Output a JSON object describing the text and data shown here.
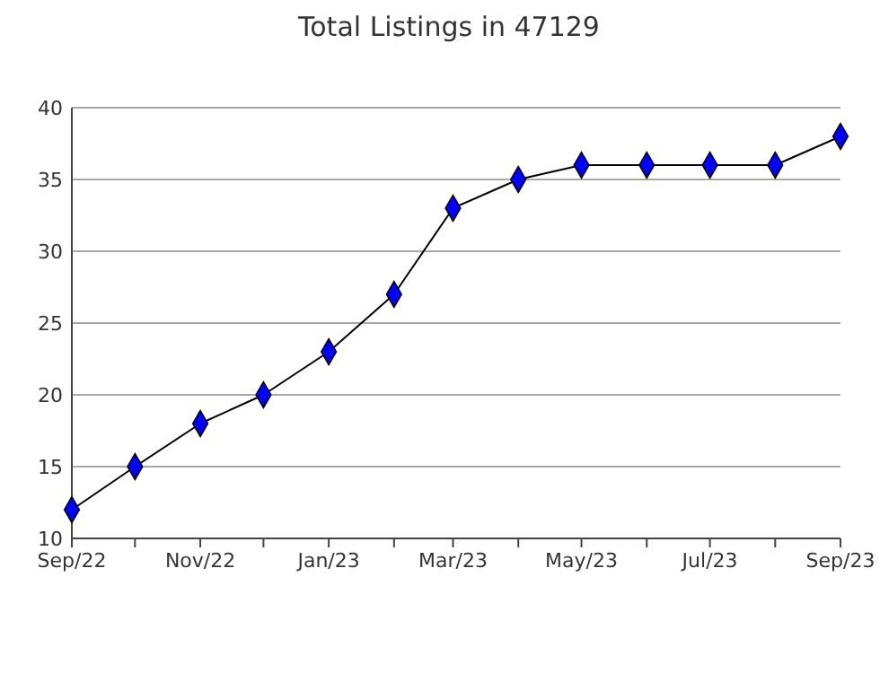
{
  "chart_data": {
    "type": "line",
    "title": "Total Listings in 47129",
    "x": [
      "2022-09",
      "2022-10",
      "2022-11",
      "2022-12",
      "2023-01",
      "2023-02",
      "2023-03",
      "2023-04",
      "2023-05",
      "2023-06",
      "2023-07",
      "2023-08",
      "2023-09"
    ],
    "series": [
      {
        "color": "#0000ff",
        "values": [
          12,
          15,
          18,
          20,
          23,
          27,
          33,
          35,
          36,
          36,
          36,
          36,
          38
        ]
      }
    ],
    "xlim": [
      "2022-09",
      "2023-09"
    ],
    "xticks": [
      {
        "value": "2022-09",
        "label": "Sep/22"
      },
      {
        "value": "2022-10",
        "label": null
      },
      {
        "value": "2022-11",
        "label": "Nov/22"
      },
      {
        "value": "2022-12",
        "label": null
      },
      {
        "value": "2023-01",
        "label": "Jan/23"
      },
      {
        "value": "2023-02",
        "label": null
      },
      {
        "value": "2023-03",
        "label": "Mar/23"
      },
      {
        "value": "2023-04",
        "label": null
      },
      {
        "value": "2023-05",
        "label": "May/23"
      },
      {
        "value": "2023-06",
        "label": null
      },
      {
        "value": "2023-07",
        "label": "Jul/23"
      },
      {
        "value": "2023-08",
        "label": null
      },
      {
        "value": "2023-09",
        "label": "Sep/23"
      }
    ],
    "ylim": [
      10,
      40
    ],
    "yticks": [
      10,
      15,
      20,
      25,
      30,
      35,
      40
    ],
    "grid": "y",
    "marker": "diamond",
    "line_style": "solid"
  }
}
